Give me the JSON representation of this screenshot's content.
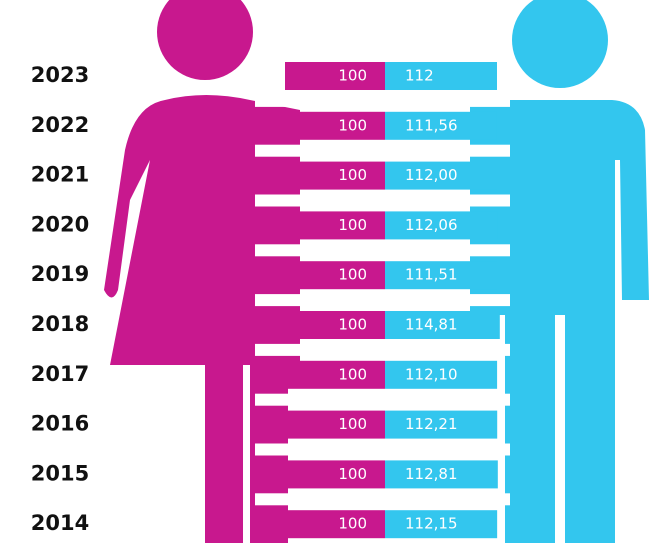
{
  "chart_data": {
    "type": "bar",
    "categories": [
      "2023",
      "2022",
      "2021",
      "2020",
      "2019",
      "2018",
      "2017",
      "2016",
      "2015",
      "2014"
    ],
    "series": [
      {
        "color": "#c8188e",
        "values": [
          100,
          100,
          100,
          100,
          100,
          100,
          100,
          100,
          100,
          100
        ]
      },
      {
        "color": "#33c6ee",
        "values": [
          112,
          111.56,
          112.0,
          112.06,
          111.51,
          114.81,
          112.1,
          112.21,
          112.81,
          112.15
        ],
        "value_labels": [
          "112",
          "111,56",
          "112,00",
          "112,06",
          "111,51",
          "114,81",
          "112,10",
          "112,21",
          "112,81",
          "112,15"
        ]
      }
    ]
  }
}
